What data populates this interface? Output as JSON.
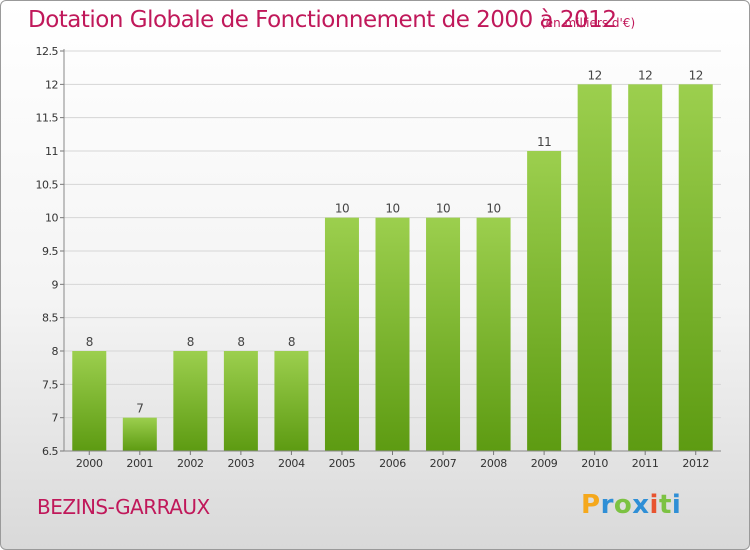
{
  "header": {
    "title": "Dotation Globale de Fonctionnement de 2000 à 2012",
    "unit_note": "(en milliers d'€)"
  },
  "footer": {
    "commune": "BEZINS-GARRAUX",
    "logo": "Proxiti"
  },
  "colors": {
    "accent": "#c0185a",
    "bar_top": "#9ccf4e",
    "bar_bottom": "#5d9b12",
    "grid": "#d6d6d6"
  },
  "chart_data": {
    "type": "bar",
    "title": "Dotation Globale de Fonctionnement de 2000 à 2012",
    "subtitle": "(en milliers d'€)",
    "xlabel": "",
    "ylabel": "",
    "categories": [
      "2000",
      "2001",
      "2002",
      "2003",
      "2004",
      "2005",
      "2006",
      "2007",
      "2008",
      "2009",
      "2010",
      "2011",
      "2012"
    ],
    "values": [
      8,
      7,
      8,
      8,
      8,
      10,
      10,
      10,
      10,
      11,
      12,
      12,
      12
    ],
    "data_labels": [
      "8",
      "7",
      "8",
      "8",
      "8",
      "10",
      "10",
      "10",
      "10",
      "11",
      "12",
      "12",
      "12"
    ],
    "ylim": [
      6.5,
      12.5
    ],
    "yticks": [
      6.5,
      7,
      7.5,
      8,
      8.5,
      9,
      9.5,
      10,
      10.5,
      11,
      11.5,
      12,
      12.5
    ],
    "ytick_labels": [
      "6.5",
      "7",
      "7.5",
      "8",
      "8.5",
      "9",
      "9.5",
      "10",
      "10.5",
      "11",
      "11.5",
      "12",
      "12.5"
    ],
    "grid": true,
    "legend": "none"
  }
}
